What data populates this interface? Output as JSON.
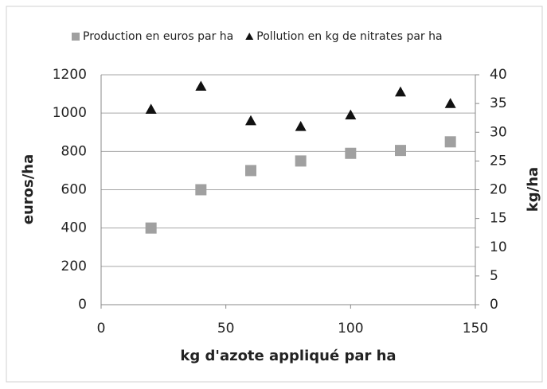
{
  "chart_data": {
    "type": "scatter",
    "x": [
      20,
      40,
      60,
      80,
      100,
      120,
      140
    ],
    "series": [
      {
        "name": "Production en euros par ha",
        "color": "#a0a0a0",
        "marker": "square",
        "values": [
          400,
          600,
          700,
          750,
          790,
          805,
          850
        ]
      },
      {
        "name": "Pollution en kg de nitrates par ha",
        "color": "#111111",
        "marker": "triangle",
        "axis": "y2",
        "values": [
          34,
          38,
          32,
          31,
          33,
          37,
          35
        ]
      }
    ],
    "xlabel": "kg d'azote appliqué par ha",
    "ylabel": "euros/ha",
    "y2label": "kg/ha",
    "xlim": [
      0,
      150
    ],
    "xticks": [
      0,
      50,
      100,
      150
    ],
    "ylim": [
      0,
      1200
    ],
    "yticks": [
      0,
      200,
      400,
      600,
      800,
      1000,
      1200
    ],
    "y2lim": [
      0,
      40
    ],
    "y2ticks": [
      0,
      5,
      10,
      15,
      20,
      25,
      30,
      35,
      40
    ],
    "grid": true,
    "legend": "top"
  }
}
